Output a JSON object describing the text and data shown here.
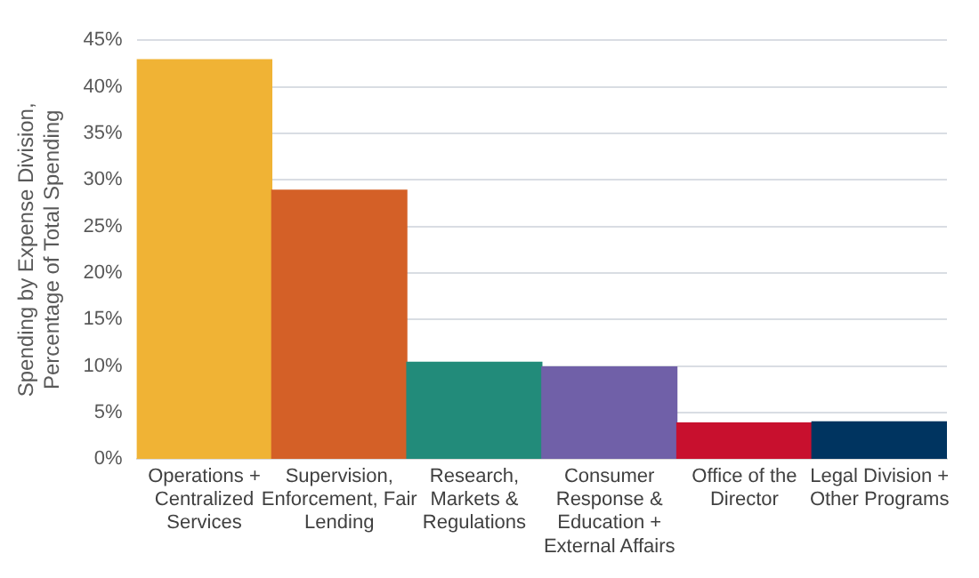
{
  "chart_data": {
    "type": "bar",
    "ylabel": "Spending by Expense Division, Percentage of Total Spending",
    "categories": [
      "Operations + Centralized Services",
      "Supervision, Enforcement, Fair Lending",
      "Research, Markets & Regulations",
      "Consumer Response & Education + External Affairs",
      "Office of the Director",
      "Legal Division + Other Programs"
    ],
    "values": [
      42.9,
      28.9,
      10.4,
      9.9,
      3.9,
      4.0
    ],
    "colors": [
      "#f0b335",
      "#d46027",
      "#228b7a",
      "#7060a8",
      "#c8102e",
      "#003460"
    ],
    "ylim": [
      0,
      45
    ],
    "yticks": [
      {
        "value": 0,
        "label": "0%"
      },
      {
        "value": 5,
        "label": "5%"
      },
      {
        "value": 10,
        "label": "10%"
      },
      {
        "value": 15,
        "label": "15%"
      },
      {
        "value": 20,
        "label": "20%"
      },
      {
        "value": 25,
        "label": "25%"
      },
      {
        "value": 30,
        "label": "30%"
      },
      {
        "value": 35,
        "label": "35%"
      },
      {
        "value": 40,
        "label": "40%"
      },
      {
        "value": 45,
        "label": "45%"
      }
    ],
    "grid": "y"
  }
}
